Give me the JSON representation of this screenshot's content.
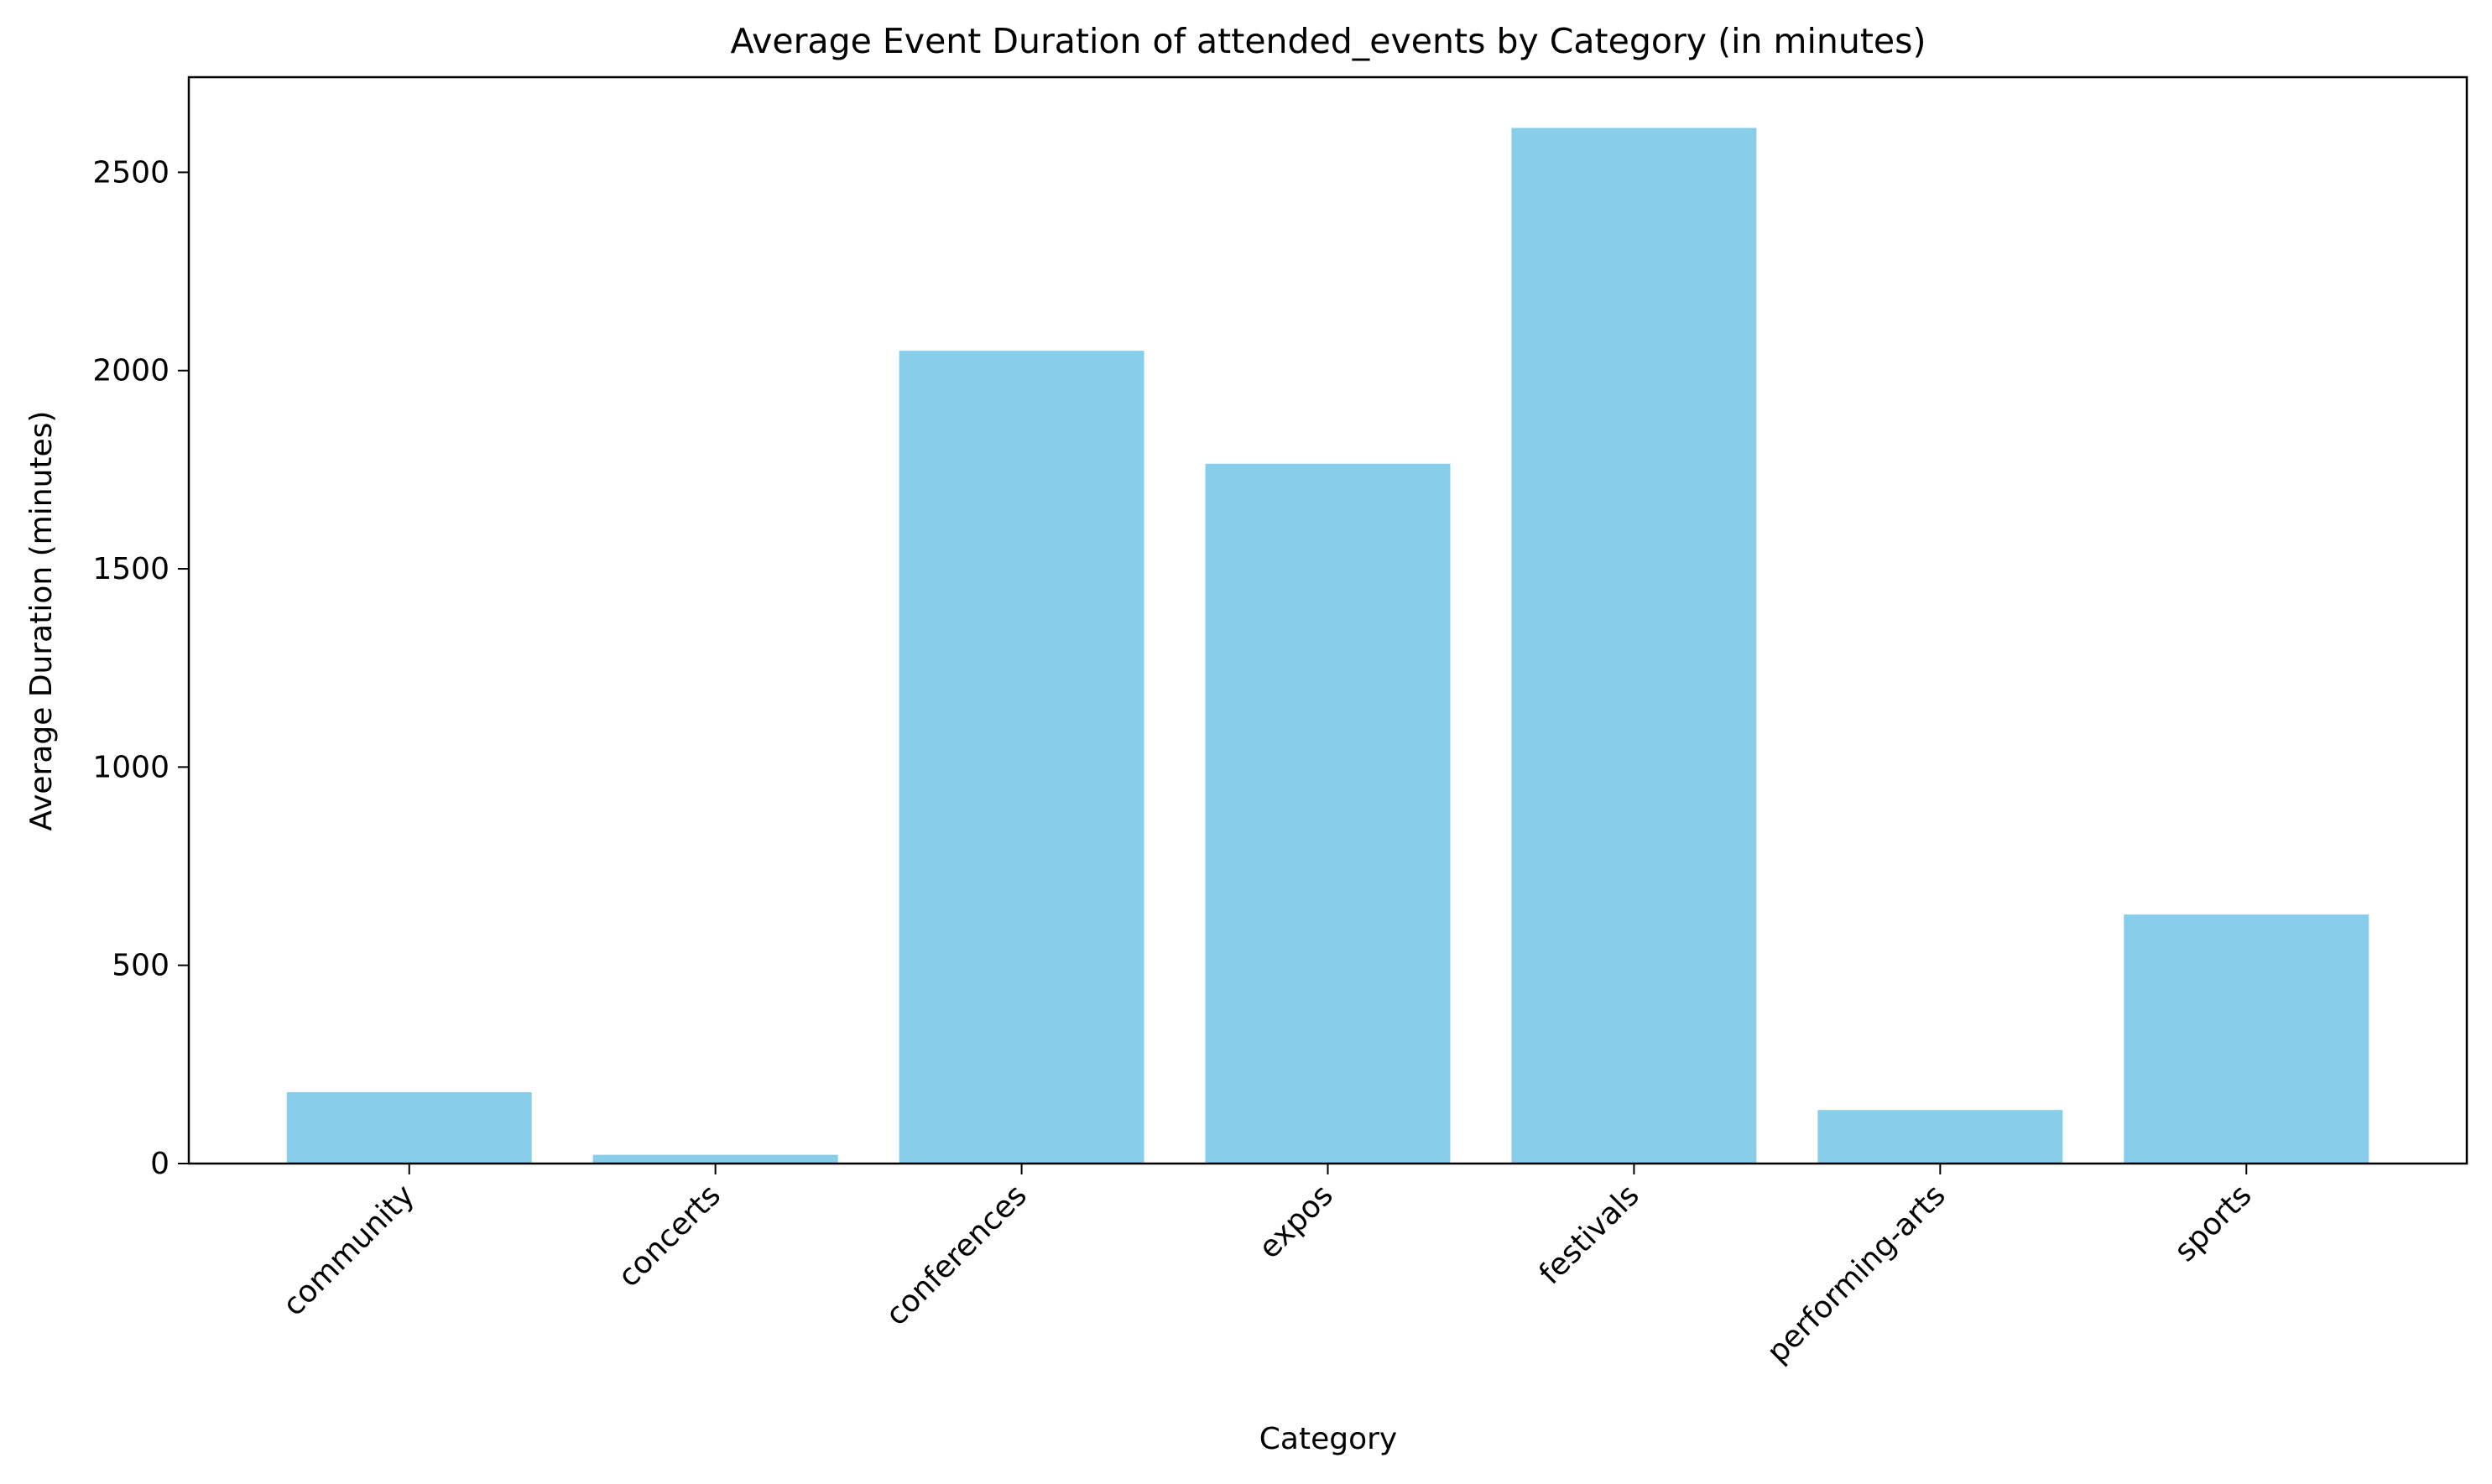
{
  "chart_data": {
    "type": "bar",
    "title": "Average Event Duration of attended_events by Category (in minutes)",
    "xlabel": "Category",
    "ylabel": "Average Duration (minutes)",
    "categories": [
      "community",
      "concerts",
      "conferences",
      "expos",
      "festivals",
      "performing-arts",
      "sports"
    ],
    "values": [
      180,
      22,
      2050,
      1765,
      2612,
      135,
      628
    ],
    "ylim": [
      0,
      2740
    ],
    "yticks": [
      0,
      500,
      1000,
      1500,
      2000,
      2500
    ],
    "bar_color": "#87CEEB",
    "grid": false,
    "legend": "none"
  }
}
